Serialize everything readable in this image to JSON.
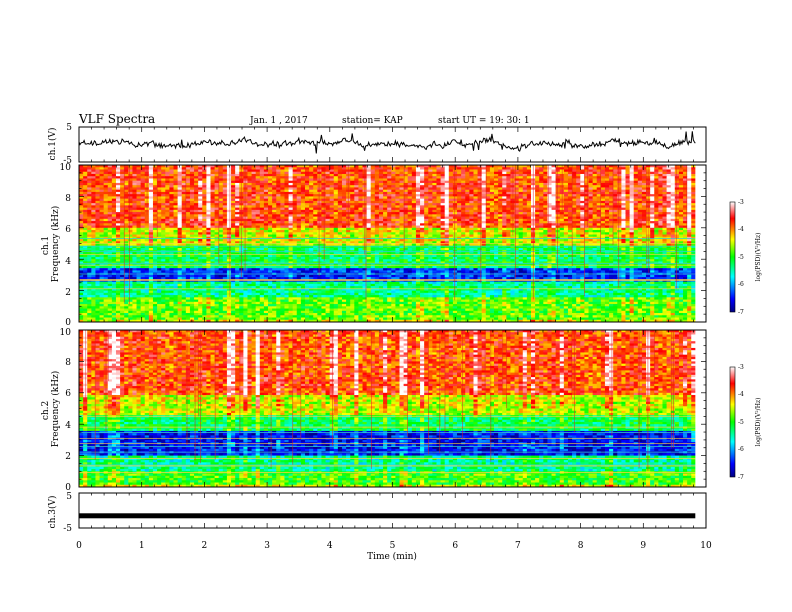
{
  "header": {
    "title": "VLF Spectra",
    "date": "Jan. 1 , 2017",
    "station": "station= KAP",
    "start_time": "start UT =  19: 30: 1"
  },
  "chart_data": [
    {
      "type": "line",
      "panel": "ch1-waveform",
      "ylabel": "ch.1(V)",
      "ytick_labels": [
        "5",
        "-5"
      ],
      "ylim": [
        -5,
        5
      ],
      "xlim": [
        0,
        10
      ],
      "data_extent_min": 9.83,
      "description_values": {
        "baseline": 0.2,
        "amplitude_range": [
          -3,
          3
        ]
      }
    },
    {
      "type": "heatmap",
      "panel": "ch1-spectrogram",
      "ylabel": "ch.1\nFrequency (kHz)",
      "ylim": [
        0,
        10
      ],
      "ytick_labels": [
        "0",
        "2",
        "4",
        "6",
        "8",
        "10"
      ],
      "xlim": [
        0,
        10
      ],
      "colorbar": {
        "label": "log(PSD)(V²/Hz)",
        "range": [
          -7,
          -3
        ],
        "tick_labels": [
          "-7",
          "-6",
          "-5",
          "-4",
          "-3"
        ]
      },
      "bands_khz": [
        {
          "from": 2.6,
          "to": 3.4,
          "level": -6.5
        },
        {
          "from": 1.6,
          "to": 2.6,
          "level": -5.5
        },
        {
          "from": 3.4,
          "to": 4.8,
          "level": -5.3
        },
        {
          "from": 0.2,
          "to": 1.6,
          "level": -4.9
        },
        {
          "from": 4.8,
          "to": 6.0,
          "level": -4.6
        },
        {
          "from": 6.0,
          "to": 10.0,
          "level": -3.9
        }
      ]
    },
    {
      "type": "heatmap",
      "panel": "ch2-spectrogram",
      "ylabel": "ch.2\nFrequency (kHz)",
      "ylim": [
        0,
        10
      ],
      "ytick_labels": [
        "0",
        "2",
        "4",
        "6",
        "8",
        "10"
      ],
      "xlim": [
        0,
        10
      ],
      "colorbar": {
        "label": "log(PSD)(V²/Hz)",
        "range": [
          -7,
          -3
        ],
        "tick_labels": [
          "-7",
          "-6",
          "-5",
          "-4",
          "-3"
        ]
      },
      "bands_khz": [
        {
          "from": 2.0,
          "to": 3.6,
          "level": -6.6
        },
        {
          "from": 1.0,
          "to": 2.0,
          "level": -5.5
        },
        {
          "from": 3.6,
          "to": 4.6,
          "level": -5.3
        },
        {
          "from": 0.2,
          "to": 1.0,
          "level": -5.0
        },
        {
          "from": 4.6,
          "to": 5.8,
          "level": -4.6
        },
        {
          "from": 5.8,
          "to": 10.0,
          "level": -3.9
        }
      ]
    },
    {
      "type": "line",
      "panel": "ch3-waveform",
      "ylabel": "ch.3(V)",
      "ytick_labels": [
        "5",
        "-5"
      ],
      "ylim": [
        -5,
        5
      ],
      "xlim": [
        0,
        10
      ],
      "data_extent_min": 9.83,
      "description_values": {
        "baseline": -1.5
      }
    }
  ],
  "xaxis": {
    "label": "Time (min)",
    "tick_labels": [
      "0",
      "1",
      "2",
      "3",
      "4",
      "5",
      "6",
      "7",
      "8",
      "9",
      "10"
    ],
    "range": [
      0,
      10
    ]
  }
}
